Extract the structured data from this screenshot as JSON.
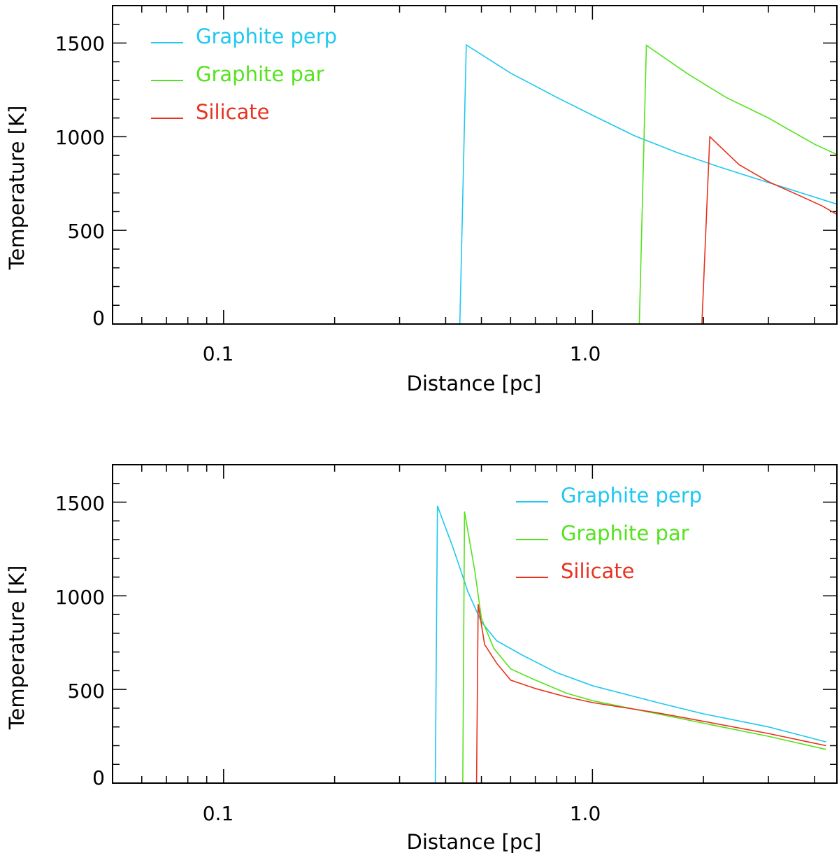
{
  "chart_data": [
    {
      "type": "line",
      "panel": "top",
      "xlabel": "Distance [pc]",
      "ylabel": "Temperature [K]",
      "xscale": "log",
      "xlim": [
        0.05,
        4.6
      ],
      "ylim": [
        0,
        1700
      ],
      "xticks": [
        {
          "value": 0.1,
          "label": "0.1"
        },
        {
          "value": 1.0,
          "label": "1.0"
        }
      ],
      "yticks": [
        {
          "value": 0,
          "label": "0"
        },
        {
          "value": 500,
          "label": "500"
        },
        {
          "value": 1000,
          "label": "1000"
        },
        {
          "value": 1500,
          "label": "1500"
        }
      ],
      "legend_position": "top-left",
      "series": [
        {
          "name": "Graphite perp",
          "color": "#1ec8f0",
          "x": [
            0.05,
            0.437,
            0.455,
            0.6,
            0.8,
            1.0,
            1.3,
            1.7,
            2.2,
            3.0,
            4.6
          ],
          "y": [
            0,
            0,
            1490,
            1340,
            1210,
            1115,
            1005,
            915,
            840,
            755,
            640
          ]
        },
        {
          "name": "Graphite par",
          "color": "#54e31c",
          "x": [
            0.05,
            1.34,
            1.4,
            1.8,
            2.3,
            3.0,
            4.0,
            4.6
          ],
          "y": [
            0,
            0,
            1488,
            1340,
            1210,
            1100,
            960,
            905
          ]
        },
        {
          "name": "Silicate",
          "color": "#e8321e",
          "x": [
            0.05,
            1.98,
            2.08,
            2.5,
            3.0,
            3.6,
            4.2,
            4.6
          ],
          "y": [
            0,
            0,
            1000,
            850,
            760,
            690,
            630,
            585
          ]
        }
      ]
    },
    {
      "type": "line",
      "panel": "bottom",
      "xlabel": "Distance [pc]",
      "ylabel": "Temperature [K]",
      "xscale": "log",
      "xlim": [
        0.05,
        4.6
      ],
      "ylim": [
        0,
        1700
      ],
      "xticks": [
        {
          "value": 0.1,
          "label": "0.1"
        },
        {
          "value": 1.0,
          "label": "1.0"
        }
      ],
      "yticks": [
        {
          "value": 0,
          "label": "0"
        },
        {
          "value": 500,
          "label": "500"
        },
        {
          "value": 1000,
          "label": "1000"
        },
        {
          "value": 1500,
          "label": "1500"
        }
      ],
      "legend_position": "top-right",
      "series": [
        {
          "name": "Graphite perp",
          "color": "#1ec8f0",
          "x": [
            0.05,
            0.375,
            0.38,
            0.42,
            0.46,
            0.5,
            0.55,
            0.65,
            0.8,
            1.0,
            1.5,
            2.0,
            3.0,
            4.3
          ],
          "y": [
            0,
            0,
            1480,
            1250,
            1020,
            860,
            760,
            680,
            590,
            520,
            430,
            370,
            300,
            220
          ]
        },
        {
          "name": "Graphite par",
          "color": "#54e31c",
          "x": [
            0.05,
            0.445,
            0.45,
            0.48,
            0.5,
            0.54,
            0.6,
            0.7,
            0.85,
            1.0,
            1.5,
            2.0,
            3.0,
            4.3
          ],
          "y": [
            0,
            0,
            1450,
            1130,
            880,
            720,
            610,
            550,
            480,
            440,
            370,
            320,
            250,
            180
          ]
        },
        {
          "name": "Silicate",
          "color": "#e8321e",
          "x": [
            0.05,
            0.485,
            0.49,
            0.51,
            0.55,
            0.6,
            0.7,
            0.85,
            1.0,
            1.5,
            2.0,
            3.0,
            4.3
          ],
          "y": [
            0,
            0,
            955,
            740,
            640,
            550,
            505,
            460,
            430,
            375,
            330,
            265,
            200
          ]
        }
      ]
    }
  ]
}
